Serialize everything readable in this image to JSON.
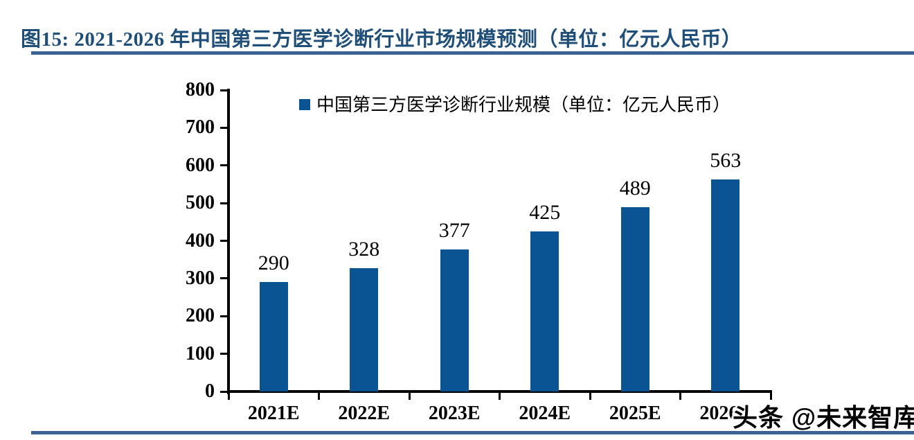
{
  "figure": {
    "title": "图15: 2021-2026 年中国第三方医学诊断行业市场规模预测（单位：亿元人民币）",
    "title_color": "#1F4E79",
    "rule_color": "#3A6191"
  },
  "chart_data": {
    "type": "bar",
    "title": "图15: 2021-2026 年中国第三方医学诊断行业市场规模预测（单位：亿元人民币）",
    "legend": [
      "中国第三方医学诊断行业规模（单位：亿元人民币）"
    ],
    "legend_position": "top",
    "categories": [
      "2021E",
      "2022E",
      "2023E",
      "2024E",
      "2025E",
      "2026E"
    ],
    "values": [
      290,
      328,
      377,
      425,
      489,
      563
    ],
    "ylim": [
      0,
      800
    ],
    "ytick_step": 100,
    "yticks": [
      0,
      100,
      200,
      300,
      400,
      500,
      600,
      700,
      800
    ],
    "grid": false,
    "bar_color": "#0A5494",
    "axis_color": "#000000",
    "value_labels": true
  },
  "watermark": {
    "text": "头条 @未来智库"
  }
}
